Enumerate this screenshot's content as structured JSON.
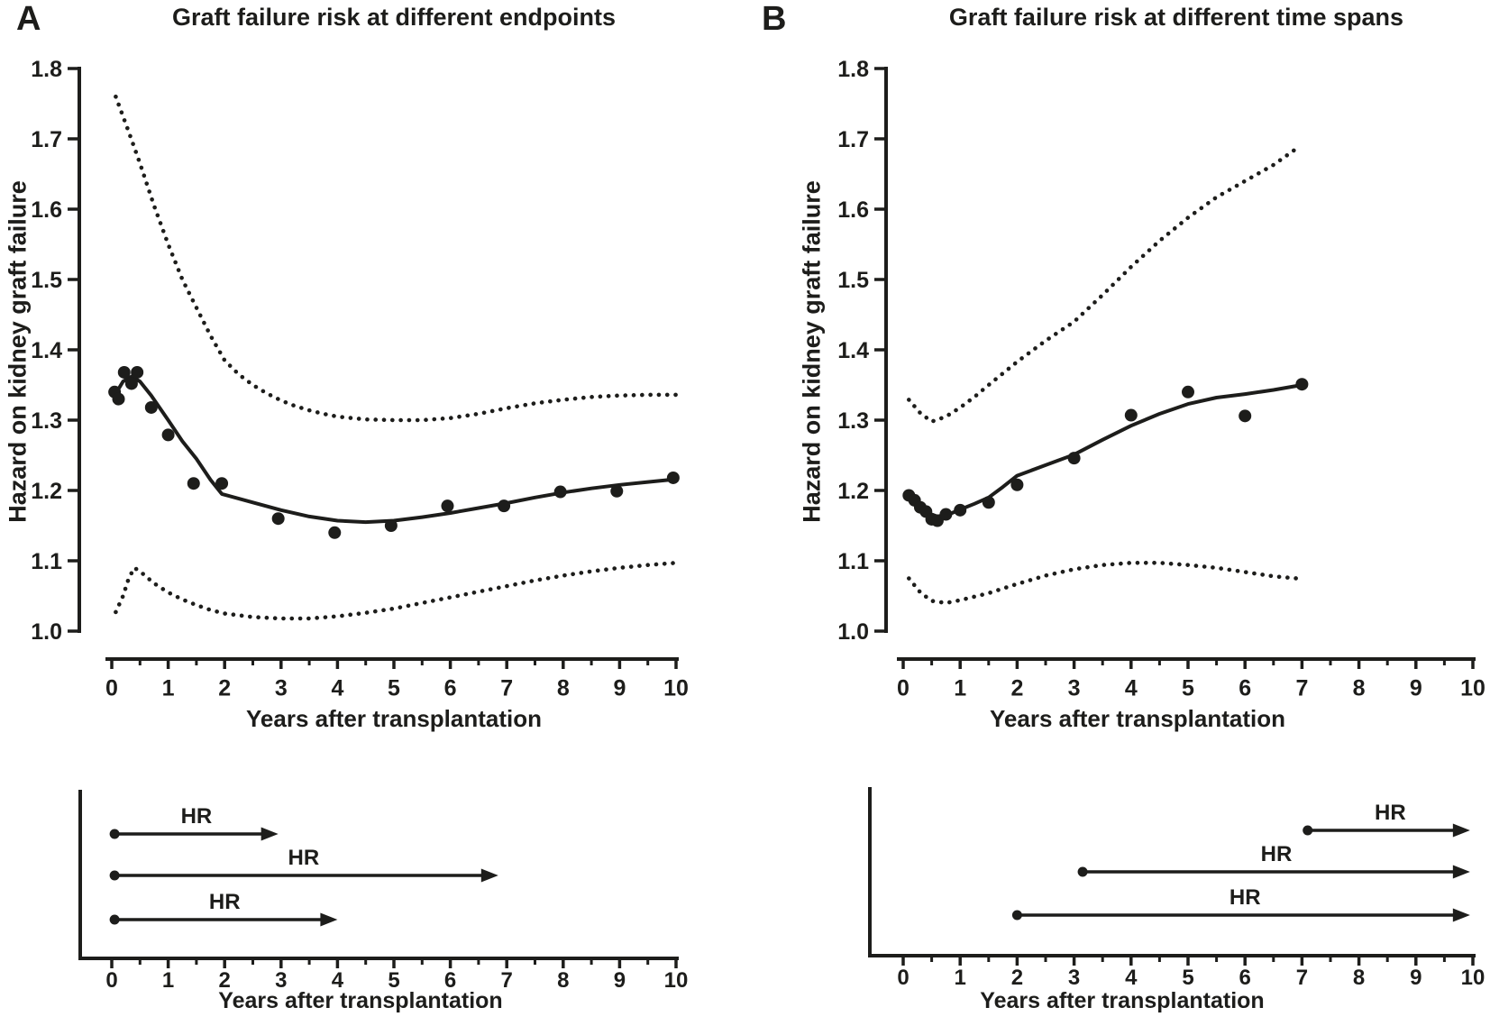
{
  "colors": {
    "ink": "#1d1d1b",
    "background": "#ffffff"
  },
  "chart_data": [
    {
      "id": "main-A",
      "panel": "A",
      "panel_letter": "A",
      "type": "scatter",
      "title": "Graft failure risk at different endpoints",
      "xlabel": "Years after transplantation",
      "ylabel": "Hazard on kidney graft failure",
      "xlim": [
        0,
        10
      ],
      "ylim": [
        1.0,
        1.8
      ],
      "x_tick_labels": [
        "0",
        "1",
        "2",
        "3",
        "4",
        "5",
        "6",
        "7",
        "8",
        "9",
        "10"
      ],
      "y_tick_labels": [
        "1.0",
        "1.1",
        "1.2",
        "1.3",
        "1.4",
        "1.5",
        "1.6",
        "1.7",
        "1.8"
      ],
      "grid": false,
      "points": [
        [
          0.05,
          1.34
        ],
        [
          0.12,
          1.33
        ],
        [
          0.22,
          1.368
        ],
        [
          0.35,
          1.352
        ],
        [
          0.45,
          1.368
        ],
        [
          0.7,
          1.318
        ],
        [
          1,
          1.279
        ],
        [
          1.45,
          1.21
        ],
        [
          1.95,
          1.21
        ],
        [
          2.95,
          1.16
        ],
        [
          3.95,
          1.14
        ],
        [
          4.95,
          1.15
        ],
        [
          5.95,
          1.178
        ],
        [
          6.95,
          1.178
        ],
        [
          7.95,
          1.198
        ],
        [
          8.95,
          1.199
        ],
        [
          9.95,
          1.218
        ]
      ],
      "fit_line": [
        [
          0.05,
          1.335
        ],
        [
          0.2,
          1.355
        ],
        [
          0.35,
          1.362
        ],
        [
          0.5,
          1.355
        ],
        [
          0.7,
          1.335
        ],
        [
          1,
          1.3
        ],
        [
          1.25,
          1.27
        ],
        [
          1.5,
          1.245
        ],
        [
          1.75,
          1.215
        ],
        [
          1.95,
          1.195
        ],
        [
          2.5,
          1.183
        ],
        [
          3,
          1.172
        ],
        [
          3.5,
          1.163
        ],
        [
          4,
          1.157
        ],
        [
          4.5,
          1.155
        ],
        [
          5,
          1.157
        ],
        [
          5.5,
          1.162
        ],
        [
          6,
          1.168
        ],
        [
          6.5,
          1.175
        ],
        [
          7,
          1.182
        ],
        [
          7.5,
          1.19
        ],
        [
          8,
          1.197
        ],
        [
          8.5,
          1.203
        ],
        [
          9,
          1.208
        ],
        [
          9.5,
          1.212
        ],
        [
          10,
          1.216
        ]
      ],
      "upper_ci": [
        [
          0.07,
          1.76
        ],
        [
          0.3,
          1.71
        ],
        [
          0.5,
          1.665
        ],
        [
          0.75,
          1.605
        ],
        [
          1,
          1.55
        ],
        [
          1.25,
          1.5
        ],
        [
          1.5,
          1.46
        ],
        [
          1.75,
          1.42
        ],
        [
          2,
          1.385
        ],
        [
          2.25,
          1.365
        ],
        [
          2.5,
          1.35
        ],
        [
          2.75,
          1.338
        ],
        [
          3,
          1.328
        ],
        [
          3.25,
          1.32
        ],
        [
          3.5,
          1.314
        ],
        [
          3.75,
          1.309
        ],
        [
          4,
          1.305
        ],
        [
          4.5,
          1.301
        ],
        [
          5,
          1.3
        ],
        [
          5.5,
          1.3
        ],
        [
          6,
          1.303
        ],
        [
          6.5,
          1.309
        ],
        [
          7,
          1.317
        ],
        [
          7.5,
          1.324
        ],
        [
          8,
          1.329
        ],
        [
          8.5,
          1.333
        ],
        [
          9,
          1.335
        ],
        [
          9.5,
          1.336
        ],
        [
          10,
          1.336
        ]
      ],
      "lower_ci": [
        [
          0.07,
          1.027
        ],
        [
          0.2,
          1.05
        ],
        [
          0.3,
          1.075
        ],
        [
          0.4,
          1.09
        ],
        [
          0.5,
          1.085
        ],
        [
          0.75,
          1.068
        ],
        [
          1,
          1.055
        ],
        [
          1.25,
          1.045
        ],
        [
          1.5,
          1.037
        ],
        [
          1.75,
          1.03
        ],
        [
          2,
          1.025
        ],
        [
          2.5,
          1.02
        ],
        [
          3,
          1.018
        ],
        [
          3.5,
          1.018
        ],
        [
          4,
          1.021
        ],
        [
          4.5,
          1.026
        ],
        [
          5,
          1.032
        ],
        [
          5.5,
          1.04
        ],
        [
          6,
          1.048
        ],
        [
          6.5,
          1.056
        ],
        [
          7,
          1.064
        ],
        [
          7.5,
          1.072
        ],
        [
          8,
          1.079
        ],
        [
          8.5,
          1.085
        ],
        [
          9,
          1.09
        ],
        [
          9.5,
          1.094
        ],
        [
          10,
          1.097
        ]
      ]
    },
    {
      "id": "timeline-A",
      "panel": "A",
      "type": "timeline",
      "xlabel": "Years after transplantation",
      "xlim": [
        0,
        10
      ],
      "x_tick_labels": [
        "0",
        "1",
        "2",
        "3",
        "4",
        "5",
        "6",
        "7",
        "8",
        "9",
        "10"
      ],
      "arrows": [
        {
          "label": "HR",
          "start": 0.05,
          "end": 2.95,
          "label_x": 1.5
        },
        {
          "label": "HR",
          "start": 0.05,
          "end": 6.85,
          "label_x": 3.4
        },
        {
          "label": "HR",
          "start": 0.05,
          "end": 4.0,
          "label_x": 2.0
        }
      ]
    },
    {
      "id": "main-B",
      "panel": "B",
      "panel_letter": "B",
      "type": "scatter",
      "title": "Graft failure risk at different time spans",
      "xlabel": "Years after transplantation",
      "ylabel": "Hazard on kidney graft failure",
      "xlim": [
        0,
        10
      ],
      "ylim": [
        1.0,
        1.8
      ],
      "x_tick_labels": [
        "0",
        "1",
        "2",
        "3",
        "4",
        "5",
        "6",
        "7",
        "8",
        "9",
        "10"
      ],
      "y_tick_labels": [
        "1.0",
        "1.1",
        "1.2",
        "1.3",
        "1.4",
        "1.5",
        "1.6",
        "1.7",
        "1.8"
      ],
      "grid": false,
      "points": [
        [
          0.1,
          1.193
        ],
        [
          0.2,
          1.186
        ],
        [
          0.3,
          1.176
        ],
        [
          0.4,
          1.17
        ],
        [
          0.5,
          1.159
        ],
        [
          0.6,
          1.157
        ],
        [
          0.75,
          1.166
        ],
        [
          1,
          1.172
        ],
        [
          1.5,
          1.183
        ],
        [
          2,
          1.208
        ],
        [
          3,
          1.246
        ],
        [
          4,
          1.307
        ],
        [
          5,
          1.34
        ],
        [
          6,
          1.306
        ],
        [
          7,
          1.351
        ]
      ],
      "fit_line": [
        [
          0.1,
          1.19
        ],
        [
          0.25,
          1.178
        ],
        [
          0.4,
          1.169
        ],
        [
          0.6,
          1.163
        ],
        [
          0.8,
          1.166
        ],
        [
          1,
          1.173
        ],
        [
          1.25,
          1.181
        ],
        [
          1.5,
          1.19
        ],
        [
          1.75,
          1.205
        ],
        [
          2,
          1.221
        ],
        [
          2.5,
          1.236
        ],
        [
          3,
          1.251
        ],
        [
          3.5,
          1.272
        ],
        [
          4,
          1.292
        ],
        [
          4.5,
          1.309
        ],
        [
          5,
          1.323
        ],
        [
          5.5,
          1.332
        ],
        [
          6,
          1.337
        ],
        [
          6.5,
          1.343
        ],
        [
          7,
          1.35
        ]
      ],
      "upper_ci": [
        [
          0.1,
          1.329
        ],
        [
          0.3,
          1.31
        ],
        [
          0.5,
          1.298
        ],
        [
          0.75,
          1.305
        ],
        [
          1,
          1.318
        ],
        [
          1.25,
          1.333
        ],
        [
          1.5,
          1.35
        ],
        [
          2,
          1.383
        ],
        [
          2.5,
          1.413
        ],
        [
          3,
          1.44
        ],
        [
          3.5,
          1.478
        ],
        [
          4,
          1.518
        ],
        [
          4.5,
          1.555
        ],
        [
          5,
          1.588
        ],
        [
          5.5,
          1.617
        ],
        [
          6,
          1.64
        ],
        [
          6.5,
          1.663
        ],
        [
          6.9,
          1.686
        ]
      ],
      "lower_ci": [
        [
          0.1,
          1.075
        ],
        [
          0.3,
          1.055
        ],
        [
          0.5,
          1.043
        ],
        [
          0.75,
          1.04
        ],
        [
          1,
          1.044
        ],
        [
          1.5,
          1.054
        ],
        [
          2,
          1.067
        ],
        [
          2.5,
          1.079
        ],
        [
          3,
          1.088
        ],
        [
          3.5,
          1.094
        ],
        [
          4,
          1.097
        ],
        [
          4.5,
          1.097
        ],
        [
          5,
          1.094
        ],
        [
          5.5,
          1.09
        ],
        [
          6,
          1.084
        ],
        [
          6.5,
          1.078
        ],
        [
          6.9,
          1.075
        ]
      ]
    },
    {
      "id": "timeline-B",
      "panel": "B",
      "type": "timeline",
      "xlabel": "Years after transplantation",
      "xlim": [
        0,
        10
      ],
      "x_tick_labels": [
        "0",
        "1",
        "2",
        "3",
        "4",
        "5",
        "6",
        "7",
        "8",
        "9",
        "10"
      ],
      "arrows": [
        {
          "label": "HR",
          "start": 7.1,
          "end": 9.95,
          "label_x": 8.55
        },
        {
          "label": "HR",
          "start": 3.15,
          "end": 9.95,
          "label_x": 6.55
        },
        {
          "label": "HR",
          "start": 2.0,
          "end": 9.95,
          "label_x": 6.0
        }
      ]
    }
  ]
}
